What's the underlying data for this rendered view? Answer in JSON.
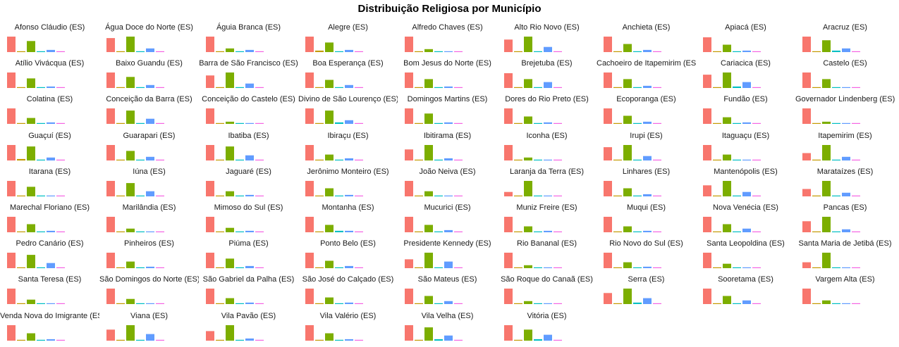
{
  "chart_data": {
    "type": "bar",
    "title": "Distribuição Religiosa por Município",
    "xlabel": "",
    "ylabel": "",
    "legend": "none",
    "series_colors": [
      "#f8766d",
      "#c49a00",
      "#7cae00",
      "#00bfc4",
      "#619cff",
      "#f564e3"
    ],
    "panels": [
      {
        "name": "Afonso Cláudio (ES)",
        "values": [
          21,
          0,
          15,
          0,
          3,
          0
        ]
      },
      {
        "name": "Água Doce do Norte (ES)",
        "values": [
          19,
          0,
          21,
          1,
          5,
          0
        ]
      },
      {
        "name": "Águia Branca (ES)",
        "values": [
          21,
          0,
          5,
          0,
          3,
          0
        ]
      },
      {
        "name": "Alegre (ES)",
        "values": [
          21,
          2,
          13,
          1,
          3,
          0
        ]
      },
      {
        "name": "Alfredo Chaves (ES)",
        "values": [
          21,
          0,
          4,
          0,
          0,
          0
        ]
      },
      {
        "name": "Alto Rio Novo (ES)",
        "values": [
          17,
          0,
          21,
          0,
          7,
          0
        ]
      },
      {
        "name": "Anchieta (ES)",
        "values": [
          21,
          0,
          11,
          0,
          3,
          0
        ]
      },
      {
        "name": "Apiacá (ES)",
        "values": [
          20,
          0,
          10,
          1,
          2,
          0
        ]
      },
      {
        "name": "Aracruz (ES)",
        "values": [
          21,
          0,
          16,
          2,
          5,
          0
        ]
      },
      {
        "name": "Atílio Vivácqua (ES)",
        "values": [
          21,
          0,
          13,
          0,
          2,
          0
        ]
      },
      {
        "name": "Baixo Guandu (ES)",
        "values": [
          21,
          1,
          15,
          1,
          4,
          1
        ]
      },
      {
        "name": "Barra de São Francisco (ES)",
        "values": [
          17,
          1,
          21,
          1,
          6,
          0
        ]
      },
      {
        "name": "Boa Esperança (ES)",
        "values": [
          21,
          0,
          11,
          1,
          4,
          0
        ]
      },
      {
        "name": "Bom Jesus do Norte (ES)",
        "values": [
          21,
          1,
          12,
          1,
          2,
          0
        ]
      },
      {
        "name": "Brejetuba (ES)",
        "values": [
          20,
          1,
          12,
          1,
          8,
          0
        ]
      },
      {
        "name": "Cachoeiro de Itapemirim (ES)",
        "values": [
          21,
          1,
          12,
          1,
          3,
          1
        ]
      },
      {
        "name": "Cariacica (ES)",
        "values": [
          18,
          1,
          21,
          2,
          8,
          1
        ]
      },
      {
        "name": "Castelo (ES)",
        "values": [
          21,
          1,
          12,
          1,
          1,
          1
        ]
      },
      {
        "name": "Colatina (ES)",
        "values": [
          21,
          0,
          8,
          0,
          2,
          0
        ]
      },
      {
        "name": "Conceição da Barra (ES)",
        "values": [
          21,
          0,
          18,
          1,
          7,
          0
        ]
      },
      {
        "name": "Conceição do Castelo (ES)",
        "values": [
          21,
          0,
          3,
          0,
          1,
          0
        ]
      },
      {
        "name": "Divino de São Lourenço (ES)",
        "values": [
          21,
          1,
          18,
          2,
          5,
          0
        ]
      },
      {
        "name": "Domingos Martins (ES)",
        "values": [
          21,
          0,
          14,
          0,
          2,
          0
        ]
      },
      {
        "name": "Dores do Rio Preto (ES)",
        "values": [
          21,
          1,
          10,
          1,
          2,
          0
        ]
      },
      {
        "name": "Ecoporanga (ES)",
        "values": [
          21,
          0,
          11,
          1,
          3,
          0
        ]
      },
      {
        "name": "Fundão (ES)",
        "values": [
          21,
          0,
          9,
          0,
          2,
          0
        ]
      },
      {
        "name": "Governador Lindenberg (ES)",
        "values": [
          21,
          0,
          3,
          0,
          0,
          0
        ]
      },
      {
        "name": "Guaçuí (ES)",
        "values": [
          21,
          2,
          19,
          0,
          4,
          0
        ]
      },
      {
        "name": "Guarapari (ES)",
        "values": [
          21,
          0,
          13,
          1,
          5,
          0
        ]
      },
      {
        "name": "Ibatiba (ES)",
        "values": [
          21,
          0,
          19,
          1,
          7,
          0
        ]
      },
      {
        "name": "Ibiraçu (ES)",
        "values": [
          21,
          0,
          8,
          0,
          3,
          0
        ]
      },
      {
        "name": "Ibitirama (ES)",
        "values": [
          15,
          0,
          21,
          0,
          3,
          0
        ]
      },
      {
        "name": "Iconha (ES)",
        "values": [
          21,
          0,
          4,
          0,
          0,
          0
        ]
      },
      {
        "name": "Irupi (ES)",
        "values": [
          18,
          1,
          21,
          1,
          6,
          0
        ]
      },
      {
        "name": "Itaguaçu (ES)",
        "values": [
          21,
          0,
          8,
          0,
          1,
          0
        ]
      },
      {
        "name": "Itapemirim (ES)",
        "values": [
          10,
          0,
          21,
          0,
          5,
          0
        ]
      },
      {
        "name": "Itarana (ES)",
        "values": [
          21,
          0,
          13,
          0,
          1,
          0
        ]
      },
      {
        "name": "Iúna (ES)",
        "values": [
          21,
          0,
          18,
          0,
          7,
          0
        ]
      },
      {
        "name": "Jaguaré (ES)",
        "values": [
          21,
          0,
          7,
          0,
          2,
          0
        ]
      },
      {
        "name": "Jerônimo Monteiro (ES)",
        "values": [
          21,
          0,
          11,
          0,
          2,
          0
        ]
      },
      {
        "name": "João Neiva (ES)",
        "values": [
          21,
          0,
          7,
          0,
          1,
          0
        ]
      },
      {
        "name": "Laranja da Terra (ES)",
        "values": [
          6,
          0,
          21,
          0,
          0,
          0
        ]
      },
      {
        "name": "Linhares (ES)",
        "values": [
          21,
          0,
          11,
          1,
          3,
          0
        ]
      },
      {
        "name": "Mantenópolis (ES)",
        "values": [
          15,
          0,
          21,
          0,
          6,
          0
        ]
      },
      {
        "name": "Marataízes (ES)",
        "values": [
          10,
          0,
          21,
          0,
          5,
          0
        ]
      },
      {
        "name": "Marechal Floriano (ES)",
        "values": [
          21,
          0,
          11,
          0,
          2,
          0
        ]
      },
      {
        "name": "Marilândia (ES)",
        "values": [
          21,
          0,
          5,
          0,
          1,
          0
        ]
      },
      {
        "name": "Mimoso do Sul (ES)",
        "values": [
          21,
          0,
          6,
          0,
          2,
          0
        ]
      },
      {
        "name": "Montanha (ES)",
        "values": [
          21,
          0,
          10,
          2,
          2,
          0
        ]
      },
      {
        "name": "Mucurici (ES)",
        "values": [
          21,
          0,
          10,
          1,
          3,
          0
        ]
      },
      {
        "name": "Muniz Freire (ES)",
        "values": [
          21,
          0,
          8,
          0,
          2,
          0
        ]
      },
      {
        "name": "Muqui (ES)",
        "values": [
          21,
          0,
          8,
          0,
          2,
          0
        ]
      },
      {
        "name": "Nova Venécia (ES)",
        "values": [
          21,
          0,
          11,
          1,
          5,
          0
        ]
      },
      {
        "name": "Pancas (ES)",
        "values": [
          15,
          0,
          21,
          0,
          4,
          0
        ]
      },
      {
        "name": "Pedro Canário (ES)",
        "values": [
          21,
          0,
          18,
          1,
          7,
          0
        ]
      },
      {
        "name": "Pinheiros (ES)",
        "values": [
          21,
          0,
          9,
          1,
          2,
          0
        ]
      },
      {
        "name": "Piúma (ES)",
        "values": [
          21,
          0,
          13,
          1,
          3,
          0
        ]
      },
      {
        "name": "Ponto Belo (ES)",
        "values": [
          21,
          0,
          10,
          1,
          3,
          0
        ]
      },
      {
        "name": "Presidente Kennedy (ES)",
        "values": [
          12,
          0,
          21,
          1,
          9,
          0
        ]
      },
      {
        "name": "Rio Bananal (ES)",
        "values": [
          21,
          0,
          4,
          0,
          1,
          0
        ]
      },
      {
        "name": "Rio Novo do Sul (ES)",
        "values": [
          21,
          0,
          8,
          0,
          2,
          0
        ]
      },
      {
        "name": "Santa Leopoldina (ES)",
        "values": [
          21,
          0,
          6,
          0,
          1,
          0
        ]
      },
      {
        "name": "Santa Maria de Jetibá (ES)",
        "values": [
          8,
          0,
          21,
          0,
          1,
          0
        ]
      },
      {
        "name": "Santa Teresa (ES)",
        "values": [
          21,
          0,
          6,
          0,
          1,
          0
        ]
      },
      {
        "name": "São Domingos do Norte (ES)",
        "values": [
          21,
          0,
          7,
          0,
          1,
          0
        ]
      },
      {
        "name": "São Gabriel da Palha (ES)",
        "values": [
          21,
          0,
          8,
          0,
          2,
          0
        ]
      },
      {
        "name": "São José do Calçado (ES)",
        "values": [
          21,
          0,
          9,
          0,
          2,
          0
        ]
      },
      {
        "name": "São Mateus (ES)",
        "values": [
          21,
          0,
          11,
          1,
          4,
          0
        ]
      },
      {
        "name": "São Roque do Canaã (ES)",
        "values": [
          21,
          0,
          4,
          0,
          1,
          0
        ]
      },
      {
        "name": "Serra (ES)",
        "values": [
          15,
          0,
          21,
          2,
          8,
          1
        ]
      },
      {
        "name": "Sooretama (ES)",
        "values": [
          21,
          0,
          11,
          1,
          5,
          0
        ]
      },
      {
        "name": "Vargem Alta (ES)",
        "values": [
          21,
          0,
          5,
          0,
          1,
          0
        ]
      },
      {
        "name": "Venda Nova do Imigrante (ES)",
        "values": [
          21,
          0,
          10,
          0,
          2,
          0
        ]
      },
      {
        "name": "Viana (ES)",
        "values": [
          15,
          0,
          21,
          1,
          9,
          0
        ]
      },
      {
        "name": "Vila Pavão (ES)",
        "values": [
          13,
          0,
          21,
          0,
          3,
          0
        ]
      },
      {
        "name": "Vila Valério (ES)",
        "values": [
          21,
          0,
          10,
          0,
          2,
          0
        ]
      },
      {
        "name": "Vila Velha (ES)",
        "values": [
          21,
          1,
          18,
          2,
          7,
          1
        ]
      },
      {
        "name": "Vitória (ES)",
        "values": [
          21,
          1,
          15,
          2,
          8,
          1
        ]
      }
    ]
  }
}
